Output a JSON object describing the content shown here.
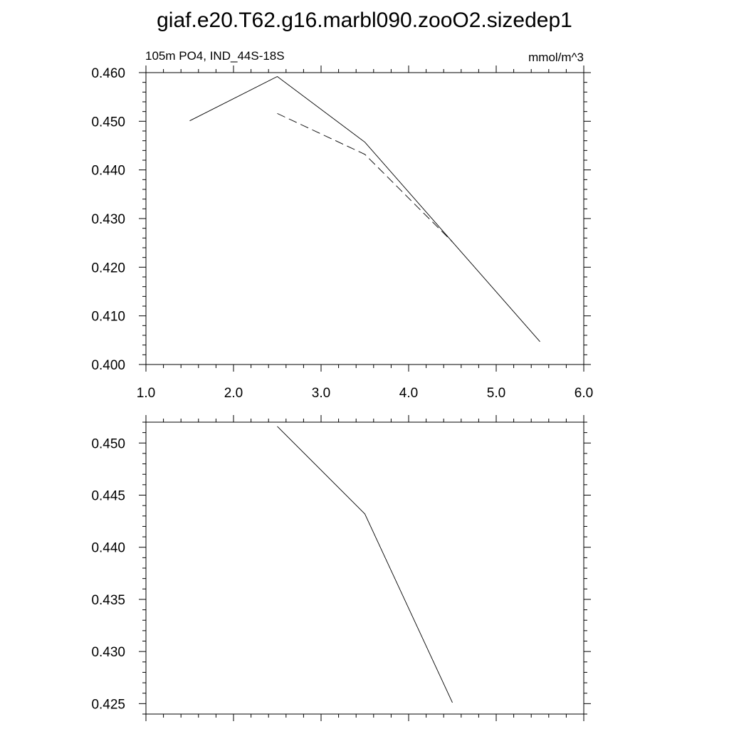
{
  "title": "giaf.e20.T62.g16.marbl090.zooO2.sizedep1",
  "chart_data": [
    {
      "type": "line",
      "subtitle_left": "105m PO4, IND_44S-18S",
      "subtitle_right": "mmol/m^3",
      "xlim": [
        1.0,
        6.0
      ],
      "ylim": [
        0.4,
        0.46
      ],
      "x_ticks": [
        "1.0",
        "2.0",
        "3.0",
        "4.0",
        "5.0",
        "6.0"
      ],
      "y_ticks": [
        "0.400",
        "0.410",
        "0.420",
        "0.430",
        "0.440",
        "0.450",
        "0.460"
      ],
      "series": [
        {
          "style": "solid",
          "x": [
            1.5,
            2.5,
            3.5,
            4.5,
            5.5
          ],
          "y": [
            0.4501,
            0.4592,
            0.4457,
            0.4252,
            0.4047
          ]
        },
        {
          "style": "dashed",
          "x": [
            2.5,
            3.5,
            4.5
          ],
          "y": [
            0.4516,
            0.4432,
            0.4252
          ]
        }
      ]
    },
    {
      "type": "line",
      "xlim": [
        1.0,
        6.0
      ],
      "ylim": [
        0.424,
        0.452
      ],
      "y_ticks": [
        "0.425",
        "0.430",
        "0.435",
        "0.440",
        "0.445",
        "0.450"
      ],
      "series": [
        {
          "style": "solid",
          "x": [
            2.5,
            3.5,
            4.5
          ],
          "y": [
            0.4516,
            0.4432,
            0.4251
          ]
        }
      ]
    }
  ]
}
